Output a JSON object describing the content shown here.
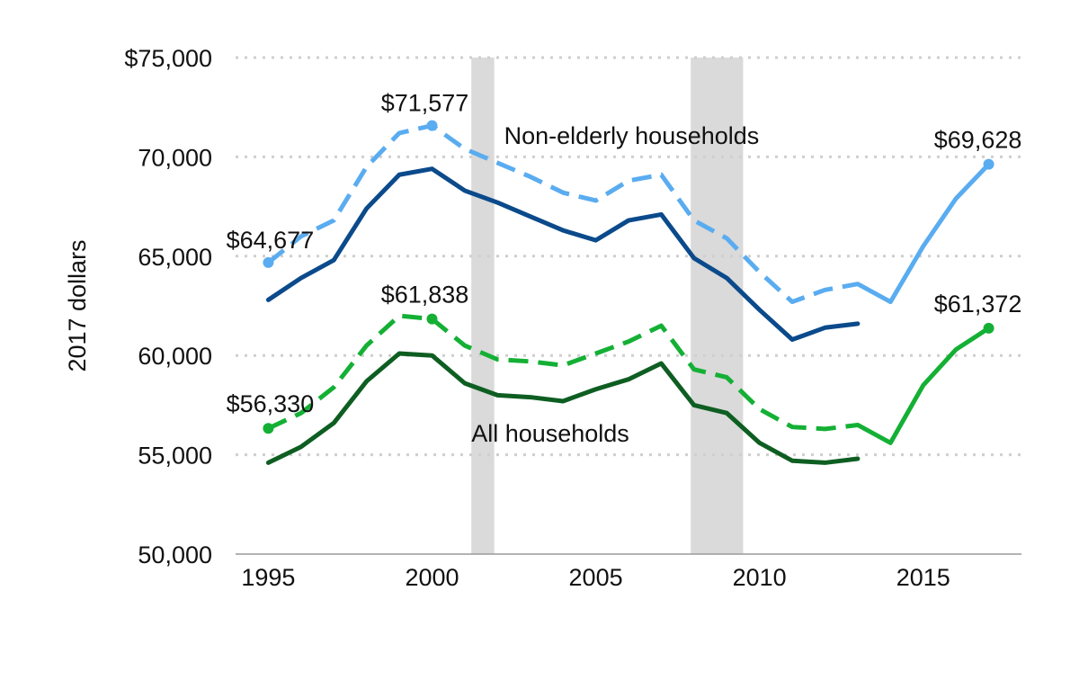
{
  "chart_data": {
    "type": "line",
    "ylabel": "2017 dollars",
    "ylim": [
      50000,
      75000
    ],
    "xlim": [
      1994,
      2018
    ],
    "y_ticks": [
      {
        "value": 75000,
        "label": "$75,000"
      },
      {
        "value": 70000,
        "label": "70,000"
      },
      {
        "value": 65000,
        "label": "65,000"
      },
      {
        "value": 60000,
        "label": "60,000"
      },
      {
        "value": 55000,
        "label": "55,000"
      },
      {
        "value": 50000,
        "label": "50,000"
      }
    ],
    "x_ticks": [
      {
        "value": 1995,
        "label": "1995"
      },
      {
        "value": 2000,
        "label": "2000"
      },
      {
        "value": 2005,
        "label": "2005"
      },
      {
        "value": 2010,
        "label": "2010"
      },
      {
        "value": 2015,
        "label": "2015"
      }
    ],
    "grid": true,
    "recessions": [
      [
        2001.2,
        2001.9
      ],
      [
        2007.9,
        2009.5
      ]
    ],
    "series": [
      {
        "id": "nonelderly-dashed",
        "color": "#5aacf0",
        "dashed": true,
        "x": [
          1995,
          1996,
          1997,
          1998,
          1999,
          2000,
          2001,
          2002,
          2003,
          2004,
          2005,
          2006,
          2007,
          2008,
          2009,
          2010,
          2011,
          2012,
          2013,
          2014,
          2015,
          2016,
          2017
        ],
        "values": [
          64677,
          66000,
          66800,
          69500,
          71200,
          71577,
          70400,
          69700,
          69000,
          68200,
          67800,
          68800,
          69100,
          66800,
          65900,
          64200,
          62700,
          63300,
          63600,
          62700,
          65500,
          67900,
          69628
        ],
        "solid_from": 2013
      },
      {
        "id": "nonelderly-solid",
        "color": "#0b4a8b",
        "dashed": false,
        "x": [
          1995,
          1996,
          1997,
          1998,
          1999,
          2000,
          2001,
          2002,
          2003,
          2004,
          2005,
          2006,
          2007,
          2008,
          2009,
          2010,
          2011,
          2012,
          2013
        ],
        "values": [
          62800,
          63900,
          64800,
          67400,
          69100,
          69400,
          68300,
          67700,
          67000,
          66300,
          65800,
          66800,
          67100,
          64900,
          63900,
          62300,
          60800,
          61400,
          61600
        ]
      },
      {
        "id": "all-dashed",
        "color": "#14b035",
        "dashed": true,
        "x": [
          1995,
          1996,
          1997,
          1998,
          1999,
          2000,
          2001,
          2002,
          2003,
          2004,
          2005,
          2006,
          2007,
          2008,
          2009,
          2010,
          2011,
          2012,
          2013,
          2014,
          2015,
          2016,
          2017
        ],
        "values": [
          56330,
          57100,
          58400,
          60500,
          62000,
          61838,
          60500,
          59800,
          59700,
          59500,
          60100,
          60700,
          61500,
          59300,
          58900,
          57300,
          56400,
          56300,
          56500,
          55600,
          58500,
          60300,
          61372
        ],
        "solid_from": 2013
      },
      {
        "id": "all-solid",
        "color": "#0e5e22",
        "dashed": false,
        "x": [
          1995,
          1996,
          1997,
          1998,
          1999,
          2000,
          2001,
          2002,
          2003,
          2004,
          2005,
          2006,
          2007,
          2008,
          2009,
          2010,
          2011,
          2012,
          2013
        ],
        "values": [
          54600,
          55400,
          56600,
          58700,
          60100,
          60000,
          58600,
          58000,
          57900,
          57700,
          58300,
          58800,
          59600,
          57500,
          57100,
          55600,
          54700,
          54600,
          54800
        ]
      }
    ],
    "points": [
      {
        "x": 1995,
        "y": 64677,
        "color": "#5aacf0",
        "label": "$64,677"
      },
      {
        "x": 2000,
        "y": 71577,
        "color": "#5aacf0",
        "label": "$71,577"
      },
      {
        "x": 2017,
        "y": 69628,
        "color": "#5aacf0",
        "label": "$69,628"
      },
      {
        "x": 1995,
        "y": 56330,
        "color": "#14b035",
        "label": "$56,330"
      },
      {
        "x": 2000,
        "y": 61838,
        "color": "#14b035",
        "label": "$61,838"
      },
      {
        "x": 2017,
        "y": 61372,
        "color": "#14b035",
        "label": "$61,372"
      }
    ],
    "annotations": [
      {
        "text": "Non-elderly households",
        "x": 2002.2,
        "y": 70650
      },
      {
        "text": "All households",
        "x": 2001.2,
        "y": 55650
      }
    ]
  }
}
